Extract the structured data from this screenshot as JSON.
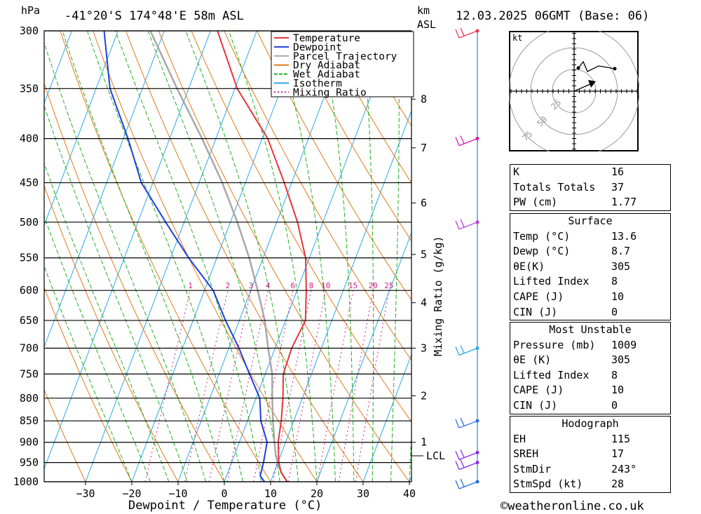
{
  "header": {
    "location": "-41°20'S  174°48'E  58m  ASL",
    "datetime": "12.03.2025  06GMT  (Base: 06)",
    "pressure_unit": "hPa",
    "height_unit": "km",
    "height_unit_sub": "ASL"
  },
  "footer": {
    "credit": "©weatheronline.co.uk"
  },
  "legend": [
    {
      "label": "Temperature",
      "color": "#e8353a"
    },
    {
      "label": "Dewpoint",
      "color": "#1f3fe0"
    },
    {
      "label": "Parcel Trajectory",
      "color": "#a8a8a8"
    },
    {
      "label": "Dry Adiabat",
      "color": "#e07a1a"
    },
    {
      "label": "Wet Adiabat",
      "color": "#22b022"
    },
    {
      "label": "Isotherm",
      "color": "#2ba8e8"
    },
    {
      "label": "Mixing Ratio",
      "color": "#cc2288"
    }
  ],
  "chart_data": {
    "type": "line",
    "xlabel": "Dewpoint / Temperature (°C)",
    "ylabel": "hPa",
    "y2label": "Mixing Ratio (g/kg)",
    "x_ticks": [
      -30,
      -20,
      -10,
      0,
      10,
      20,
      30,
      40
    ],
    "y_ticks": [
      300,
      350,
      400,
      450,
      500,
      550,
      600,
      650,
      700,
      750,
      800,
      850,
      900,
      950,
      1000
    ],
    "km_ticks": [
      {
        "label": "8",
        "p": 360
      },
      {
        "label": "7",
        "p": 410
      },
      {
        "label": "6",
        "p": 475
      },
      {
        "label": "5",
        "p": 545
      },
      {
        "label": "4",
        "p": 620
      },
      {
        "label": "3",
        "p": 700
      },
      {
        "label": "2",
        "p": 795
      },
      {
        "label": "1",
        "p": 900
      },
      {
        "label": "LCL",
        "p": 933
      }
    ],
    "mixing_ratio_labels": [
      "1",
      "2",
      "3",
      "4",
      "6",
      "8",
      "10",
      "15",
      "20",
      "25"
    ],
    "series": [
      {
        "name": "Temperature",
        "color": "#e8353a",
        "points": [
          [
            1000,
            13.6
          ],
          [
            975,
            11.5
          ],
          [
            950,
            10.2
          ],
          [
            925,
            9.3
          ],
          [
            900,
            8.4
          ],
          [
            850,
            7.3
          ],
          [
            800,
            5.8
          ],
          [
            750,
            3.9
          ],
          [
            700,
            3.6
          ],
          [
            650,
            4.3
          ],
          [
            600,
            2.0
          ],
          [
            550,
            -0.8
          ],
          [
            500,
            -5.5
          ],
          [
            450,
            -11.6
          ],
          [
            400,
            -18.8
          ],
          [
            350,
            -29.5
          ],
          [
            300,
            -38.5
          ]
        ]
      },
      {
        "name": "Dewpoint",
        "color": "#1f3fe0",
        "points": [
          [
            1000,
            8.7
          ],
          [
            985,
            7.3
          ],
          [
            950,
            6.9
          ],
          [
            900,
            6.0
          ],
          [
            850,
            2.9
          ],
          [
            800,
            0.8
          ],
          [
            750,
            -3.4
          ],
          [
            700,
            -7.8
          ],
          [
            650,
            -13.0
          ],
          [
            600,
            -18.1
          ],
          [
            550,
            -26.1
          ],
          [
            500,
            -34.0
          ],
          [
            450,
            -42.5
          ],
          [
            400,
            -49.0
          ],
          [
            350,
            -57.0
          ],
          [
            300,
            -63.0
          ]
        ]
      },
      {
        "name": "Parcel Trajectory",
        "color": "#a8a8a8",
        "points": [
          [
            1000,
            13.6
          ],
          [
            975,
            11.5
          ],
          [
            950,
            10.0
          ],
          [
            933,
            9.0
          ],
          [
            900,
            7.6
          ],
          [
            850,
            5.5
          ],
          [
            800,
            3.5
          ],
          [
            750,
            1.5
          ],
          [
            700,
            -1.5
          ],
          [
            650,
            -4.5
          ],
          [
            600,
            -8.5
          ],
          [
            550,
            -13.0
          ],
          [
            500,
            -18.5
          ],
          [
            450,
            -25.0
          ],
          [
            400,
            -33.0
          ],
          [
            350,
            -42.5
          ],
          [
            300,
            -53.0
          ]
        ]
      }
    ],
    "wind_barbs": [
      {
        "p": 300,
        "color": "#e8355a"
      },
      {
        "p": 400,
        "color": "#d61bb0"
      },
      {
        "p": 500,
        "color": "#b93ed9"
      },
      {
        "p": 700,
        "color": "#2ba8e8"
      },
      {
        "p": 850,
        "color": "#2b6ee8"
      },
      {
        "p": 925,
        "color": "#8a2be8"
      },
      {
        "p": 950,
        "color": "#8a2be8"
      },
      {
        "p": 1000,
        "color": "#1f6fe0"
      }
    ]
  },
  "hodograph": {
    "unit": "kt",
    "ring_labels": [
      "25",
      "50",
      "75"
    ]
  },
  "indices": {
    "k_label": "K",
    "k_value": "16",
    "tt_label": "Totals Totals",
    "tt_value": "37",
    "pw_label": "PW (cm)",
    "pw_value": "1.77"
  },
  "surface": {
    "title": "Surface",
    "temp_label": "Temp (°C)",
    "temp_value": "13.6",
    "dewp_label": "Dewp (°C)",
    "dewp_value": "8.7",
    "theta_label": "θE(K)",
    "theta_value": "305",
    "li_label": "Lifted Index",
    "li_value": "8",
    "cape_label": "CAPE (J)",
    "cape_value": "10",
    "cin_label": "CIN (J)",
    "cin_value": "0"
  },
  "most_unstable": {
    "title": "Most Unstable",
    "pressure_label": "Pressure (mb)",
    "pressure_value": "1009",
    "theta_label": "θE (K)",
    "theta_value": "305",
    "li_label": "Lifted Index",
    "li_value": "8",
    "cape_label": "CAPE (J)",
    "cape_value": "10",
    "cin_label": "CIN (J)",
    "cin_value": "0"
  },
  "hodo_table": {
    "title": "Hodograph",
    "eh_label": "EH",
    "eh_value": "115",
    "sreh_label": "SREH",
    "sreh_value": "17",
    "stmdir_label": "StmDir",
    "stmdir_value": "243°",
    "stmspd_label": "StmSpd (kt)",
    "stmspd_value": "28"
  }
}
